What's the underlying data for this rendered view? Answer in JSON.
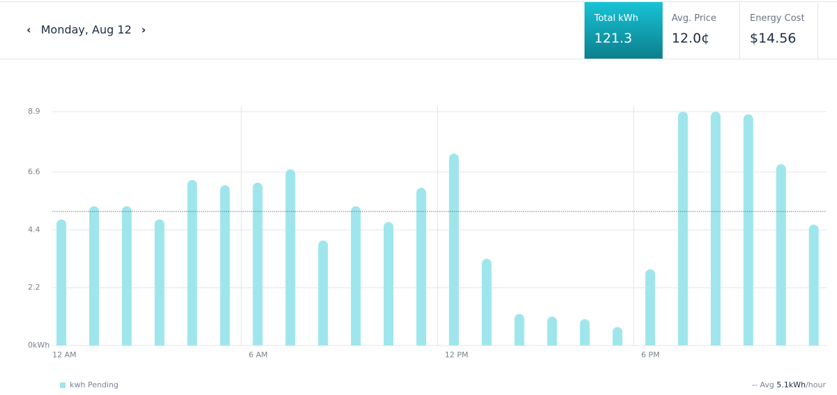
{
  "header": {
    "date": "Monday, Aug 12",
    "tiles": [
      {
        "label": "Total kWh",
        "value": "121.3"
      },
      {
        "label": "Avg. Price",
        "value": "12.0¢"
      },
      {
        "label": "Energy Cost",
        "value": "$14.56"
      }
    ]
  },
  "chart_data": {
    "type": "bar",
    "categories": [
      "12 AM",
      null,
      null,
      null,
      null,
      null,
      "6 AM",
      null,
      null,
      null,
      null,
      null,
      "12 PM",
      null,
      null,
      null,
      null,
      null,
      "6 PM",
      null,
      null,
      null,
      null,
      null
    ],
    "series": [
      {
        "name": "kwh Pending",
        "color": "#9fe6ec",
        "values": [
          4.8,
          5.3,
          5.3,
          4.8,
          6.3,
          6.1,
          6.2,
          6.7,
          4.0,
          5.3,
          4.7,
          6.0,
          7.3,
          3.3,
          1.2,
          1.1,
          1.0,
          0.7,
          2.9,
          8.9,
          8.9,
          8.8,
          6.9,
          4.6
        ]
      }
    ],
    "ylim": [
      0,
      8.9
    ],
    "yticks": [
      {
        "value": 0,
        "label": "0kWh"
      },
      2.2,
      4.4,
      6.6,
      8.9
    ],
    "grid": true,
    "avg_line": {
      "value": 5.1,
      "prefix": "-- Avg",
      "label": "5.1kWh",
      "suffix": "/hour"
    }
  }
}
